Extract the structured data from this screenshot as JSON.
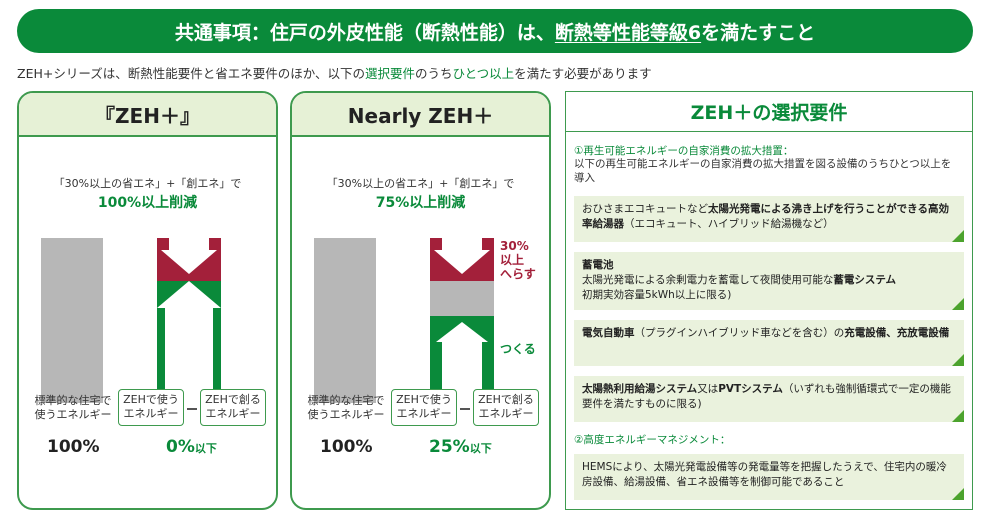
{
  "banner": {
    "text_a": "共通事項：住戸の外皮性能（断熱性能）は、",
    "text_b": "断熱等性能等級6",
    "text_c": "を満たすこと"
  },
  "intro": {
    "a": "ZEH+シリーズは、断熱性能要件と省エネ要件のほか、以下の",
    "b": "選択要件",
    "c": "のうち",
    "d": "ひとつ以上",
    "e": "を満たす必要があります"
  },
  "panels": [
    {
      "title": "『ZEH＋』",
      "caption": "「30%以上の省エネ」+「創エネ」で",
      "reduction": "100%以上削減",
      "label_standard": [
        "標準的な住宅で",
        "使うエネルギー"
      ],
      "label_use": [
        "ZEHで使う",
        "エネルギー"
      ],
      "label_create": [
        "ZEHで創る",
        "エネルギー"
      ],
      "value_standard": "100%",
      "value_result": "0%",
      "value_result_suffix": "以下"
    },
    {
      "title": "Nearly ZEH＋",
      "caption": "「30%以上の省エネ」+「創エネ」で",
      "reduction": "75%以上削減",
      "label_standard": [
        "標準的な住宅で",
        "使うエネルギー"
      ],
      "label_use": [
        "ZEHで使う",
        "エネルギー"
      ],
      "label_create": [
        "ZEHで創る",
        "エネルギー"
      ],
      "value_standard": "100%",
      "value_result": "25%",
      "value_result_suffix": "以下",
      "note_reduce": [
        "30%",
        "以上",
        "へらす"
      ],
      "note_create": "つくる"
    }
  ],
  "selection": {
    "title": "ZEH＋の選択要件",
    "section1_title": "①再生可能エネルギーの自家消費の拡大措置：",
    "section1_desc": "以下の再生可能エネルギーの自家消費の拡大措置を図る設備のうちひとつ以上を導入",
    "items": [
      {
        "pre": "おひさまエコキュートなど",
        "bold": "太陽光発電による沸き上げを行うことができる高効率給湯器",
        "post": "（エコキュート、ハイブリッド給湯機など）"
      },
      {
        "bold": "蓄電池",
        "line2_pre": "太陽光発電による余剰電力を蓄電して夜間使用可能な",
        "line2_bold": "蓄電システム",
        "line3": "初期実効容量5kWh以上に限る)"
      },
      {
        "bold": "電気自動車",
        "post": "（プラグインハイブリッド車などを含む）の",
        "bold2": "充電設備、充放電設備"
      },
      {
        "bold": "太陽熱利用給湯システム",
        "mid": "又は",
        "bold2": "PVTシステム",
        "post": "（いずれも強制循環式で一定の機能要件を満たすものに限る)"
      }
    ],
    "section2_title": "②高度エネルギーマネジメント：",
    "section2_desc": "HEMSにより、太陽光発電設備等の発電量等を把握したうえで、住宅内の暖冷房設備、給湯設備、省エネ設備等を制御可能であること"
  },
  "colors": {
    "green": "#0a8a3a",
    "light_green": "#e6f1d6",
    "red": "#a3203a",
    "gray": "#b7b7b7"
  }
}
